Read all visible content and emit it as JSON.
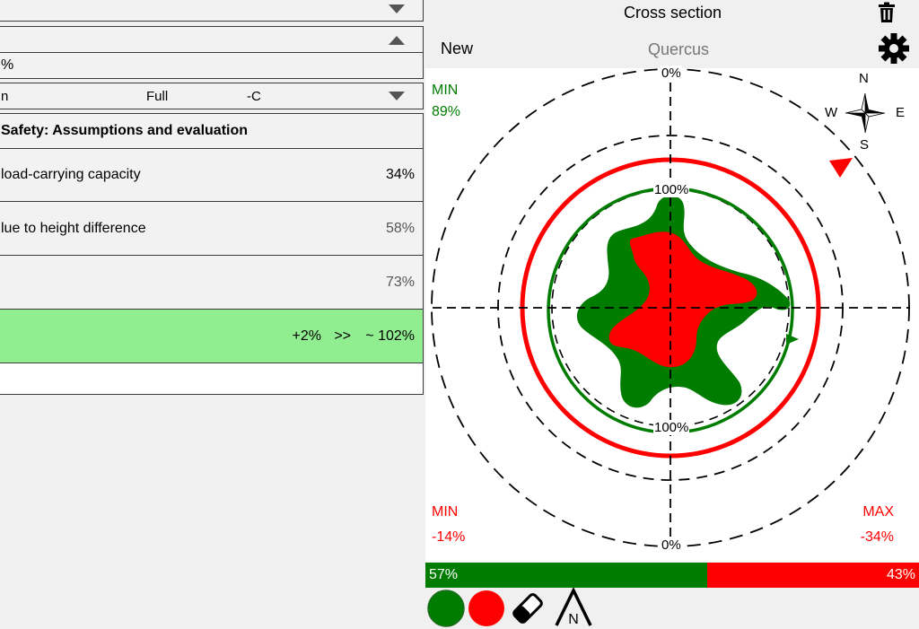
{
  "left": {
    "row1": {
      "value": ""
    },
    "row2": {
      "value": ""
    },
    "row3": {
      "value": "%"
    },
    "row4": {
      "prefix": "n",
      "mode": "Full",
      "unit": "-C"
    },
    "section_header": "Safety: Assumptions and evaluation",
    "items": [
      {
        "label": " load-carrying capacity",
        "value": "34%"
      },
      {
        "label": "lue to height difference",
        "value": "58%"
      },
      {
        "label": "",
        "value": "73%"
      }
    ],
    "result": {
      "delta": "+2%",
      "arrow": ">>",
      "approx": "~ 102%"
    },
    "empty_row": ""
  },
  "right": {
    "header": {
      "title": "Cross section",
      "new_label": "New",
      "species": "Quercus"
    },
    "chart_labels": {
      "top_zero": "0%",
      "bottom_zero": "0%",
      "upper_hundred": "100%",
      "lower_hundred": "100%"
    },
    "compass": {
      "n": "N",
      "e": "E",
      "s": "S",
      "w": "W"
    },
    "min_green": {
      "label": "MIN",
      "value": "89%"
    },
    "min_red": {
      "label": "MIN",
      "value": "-14%"
    },
    "max_red": {
      "label": "MAX",
      "value": "-34%"
    },
    "bar": {
      "green_value": "57%",
      "red_value": "43%",
      "green_fraction": 0.57,
      "red_fraction": 0.43
    },
    "tools": {
      "north_label": "N"
    },
    "colors": {
      "green": "#007c00",
      "red": "#ff0000",
      "bright_green": "#90ee90"
    }
  }
}
